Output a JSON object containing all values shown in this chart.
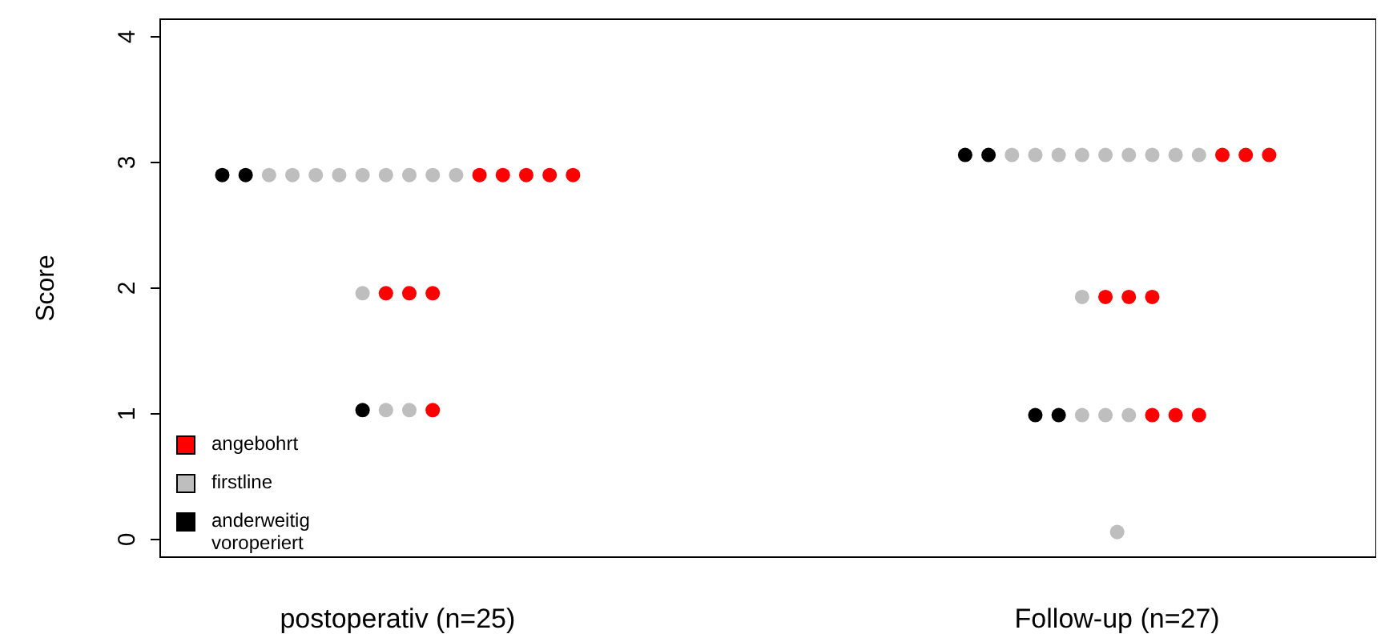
{
  "chart_data": {
    "type": "scatter",
    "ylabel": "Score",
    "categories": [
      "postoperativ (n=25)",
      "Follow-up (n=27)"
    ],
    "ylim": [
      -0.14,
      4.14
    ],
    "yticks": [
      0,
      1,
      2,
      3,
      4
    ],
    "grid": false,
    "legend": "bottom left",
    "marker": "circle",
    "series": [
      {
        "name": "angebohrt",
        "color": "#ff0000",
        "x": [
          "postoperativ (n=25)",
          "postoperativ (n=25)",
          "postoperativ (n=25)",
          "postoperativ (n=25)",
          "postoperativ (n=25)",
          "postoperativ (n=25)",
          "postoperativ (n=25)",
          "postoperativ (n=25)",
          "postoperativ (n=25)",
          "Follow-up (n=27)",
          "Follow-up (n=27)",
          "Follow-up (n=27)",
          "Follow-up (n=27)",
          "Follow-up (n=27)",
          "Follow-up (n=27)",
          "Follow-up (n=27)",
          "Follow-up (n=27)",
          "Follow-up (n=27)"
        ],
        "values": [
          2.9,
          2.9,
          2.9,
          2.9,
          2.9,
          1.96,
          1.96,
          1.96,
          1.03,
          3.06,
          3.06,
          3.06,
          1.93,
          1.93,
          1.93,
          0.99,
          0.99,
          0.99
        ]
      },
      {
        "name": "firstline",
        "color": "#bebebe",
        "x": [
          "postoperativ (n=25)",
          "postoperativ (n=25)",
          "postoperativ (n=25)",
          "postoperativ (n=25)",
          "postoperativ (n=25)",
          "postoperativ (n=25)",
          "postoperativ (n=25)",
          "postoperativ (n=25)",
          "postoperativ (n=25)",
          "postoperativ (n=25)",
          "postoperativ (n=25)",
          "postoperativ (n=25)",
          "Follow-up (n=27)",
          "Follow-up (n=27)",
          "Follow-up (n=27)",
          "Follow-up (n=27)",
          "Follow-up (n=27)",
          "Follow-up (n=27)",
          "Follow-up (n=27)",
          "Follow-up (n=27)",
          "Follow-up (n=27)",
          "Follow-up (n=27)",
          "Follow-up (n=27)",
          "Follow-up (n=27)",
          "Follow-up (n=27)",
          "Follow-up (n=27)"
        ],
        "values": [
          2.9,
          2.9,
          2.9,
          2.9,
          2.9,
          2.9,
          2.9,
          2.9,
          2.9,
          1.96,
          1.03,
          1.03,
          3.06,
          3.06,
          3.06,
          3.06,
          3.06,
          3.06,
          3.06,
          3.06,
          3.06,
          1.93,
          0.99,
          0.99,
          0.99,
          0.06
        ]
      },
      {
        "name": "anderweitig voroperiert",
        "color": "#000000",
        "x": [
          "postoperativ (n=25)",
          "postoperativ (n=25)",
          "postoperativ (n=25)",
          "Follow-up (n=27)",
          "Follow-up (n=27)",
          "Follow-up (n=27)",
          "Follow-up (n=27)"
        ],
        "values": [
          2.9,
          2.9,
          1.03,
          3.06,
          3.06,
          0.99,
          0.99
        ]
      }
    ]
  }
}
